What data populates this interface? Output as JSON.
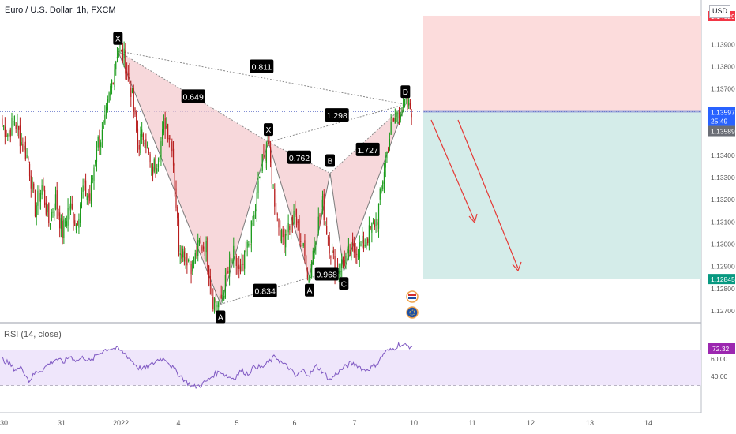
{
  "header": {
    "symbol": "Euro / U.S. Dollar, 1h, FXCM",
    "currency": "USD"
  },
  "rsi": {
    "label": "RSI (14, close)",
    "value_label": "72.32",
    "value": 72.32,
    "levels": [
      70,
      30
    ],
    "tick_labels": [
      "60.00",
      "40.00"
    ]
  },
  "price_axis": {
    "tick_labels": [
      "1.13900",
      "1.13800",
      "1.13700",
      "1.13400",
      "1.13300",
      "1.13200",
      "1.13100",
      "1.13000",
      "1.12900",
      "1.12800",
      "1.12700"
    ],
    "tag_top": "1.14029",
    "tag_current": "1.13597",
    "tag_timer": "25:49",
    "tag_prev": "1.13589",
    "tag_bottom": "1.12845"
  },
  "time_axis": {
    "labels": [
      "30",
      "31",
      "2022",
      "4",
      "5",
      "6",
      "7",
      "10",
      "11",
      "12",
      "13",
      "14"
    ]
  },
  "pattern": {
    "points": [
      {
        "label": "X",
        "price": 1.1387
      },
      {
        "label": "A",
        "price": 1.1273
      },
      {
        "label": "X",
        "price": 1.1346
      },
      {
        "label": "A",
        "price": 1.1285
      },
      {
        "label": "B",
        "price": 1.1332
      },
      {
        "label": "C",
        "price": 1.1288
      },
      {
        "label": "D",
        "price": 1.1363
      }
    ],
    "ratios": [
      "0.811",
      "0.649",
      "1.298",
      "1.727",
      "0.762",
      "0.834",
      "0.968"
    ]
  },
  "trade_box": {
    "stop": 1.14029,
    "entry": 1.13597,
    "target": 1.12845
  },
  "colors": {
    "bull": "#26a69a",
    "bull_candle": "#1a9b1a",
    "bear": "#b71c1c",
    "pattern_fill": "#f4c7cc",
    "stop_zone": "#fcdcdc",
    "target_zone": "#d4ece9",
    "rsi_line": "#7e57c2",
    "rsi_band": "#efe6fb",
    "arrow": "#e53935",
    "tag_red": "#f23645",
    "tag_blue": "#2962ff",
    "tag_teal": "#089981",
    "tag_purple": "#9c27b0"
  },
  "chart_data": {
    "type": "candlestick",
    "title": "Euro / U.S. Dollar, 1h, FXCM",
    "ylim": [
      1.1265,
      1.141
    ],
    "y_ticks": [
      1.139,
      1.138,
      1.137,
      1.134,
      1.133,
      1.132,
      1.131,
      1.13,
      1.129,
      1.128,
      1.127
    ],
    "x_ticks": [
      "30",
      "31",
      "2022",
      "4",
      "5",
      "6",
      "7",
      "10",
      "11",
      "12",
      "13",
      "14"
    ],
    "price_path": [
      1.1355,
      1.135,
      1.1356,
      1.1346,
      1.1338,
      1.1316,
      1.1326,
      1.131,
      1.132,
      1.1305,
      1.1318,
      1.1309,
      1.1325,
      1.132,
      1.1345,
      1.135,
      1.137,
      1.1387,
      1.1384,
      1.137,
      1.1345,
      1.135,
      1.1332,
      1.134,
      1.1355,
      1.1346,
      1.13,
      1.1295,
      1.129,
      1.13,
      1.1298,
      1.1275,
      1.1273,
      1.1285,
      1.1295,
      1.1285,
      1.1298,
      1.1312,
      1.1335,
      1.1346,
      1.132,
      1.1302,
      1.1308,
      1.1312,
      1.13,
      1.1285,
      1.1305,
      1.1318,
      1.13,
      1.1288,
      1.1292,
      1.1296,
      1.1298,
      1.13,
      1.1306,
      1.1312,
      1.1334,
      1.1352,
      1.136,
      1.1363,
      1.1361
    ],
    "rsi_series": [
      60,
      55,
      48,
      50,
      35,
      45,
      48,
      55,
      60,
      56,
      63,
      58,
      62,
      57,
      65,
      70,
      72,
      71,
      66,
      58,
      50,
      49,
      54,
      60,
      60,
      50,
      42,
      34,
      28,
      30,
      35,
      42,
      46,
      40,
      38,
      47,
      43,
      52,
      50,
      56,
      63,
      55,
      50,
      40,
      47,
      42,
      52,
      45,
      36,
      44,
      50,
      55,
      53,
      47,
      50,
      56,
      68,
      70,
      76,
      75,
      74
    ]
  }
}
